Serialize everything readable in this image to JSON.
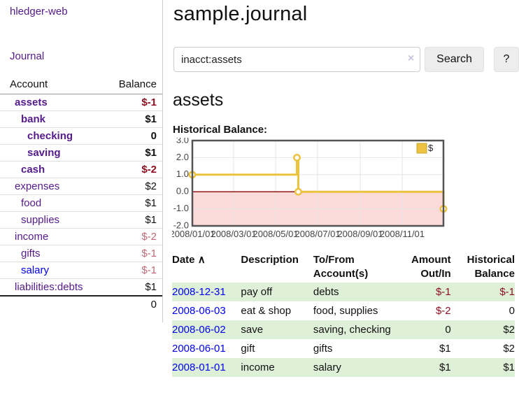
{
  "app": {
    "brand": "hledger-web",
    "nav_journal_label": "Journal"
  },
  "sidebar": {
    "table": {
      "headers": {
        "account": "Account",
        "balance": "Balance"
      },
      "rows": [
        {
          "account": "assets",
          "balance": "$-1",
          "level": 1,
          "bold": true,
          "balance_style": "neg-strong",
          "link_style": "visited"
        },
        {
          "account": "bank",
          "balance": "$1",
          "level": 2,
          "bold": true,
          "balance_style": "pos",
          "link_style": "visited"
        },
        {
          "account": "checking",
          "balance": "0",
          "level": 3,
          "bold": true,
          "balance_style": "pos",
          "link_style": "visited"
        },
        {
          "account": "saving",
          "balance": "$1",
          "level": 3,
          "bold": true,
          "balance_style": "pos",
          "link_style": "visited"
        },
        {
          "account": "cash",
          "balance": "$-2",
          "level": 2,
          "bold": true,
          "balance_style": "neg-strong",
          "link_style": "visited"
        },
        {
          "account": "expenses",
          "balance": "$2",
          "level": 1,
          "bold": false,
          "balance_style": "pos",
          "link_style": "visited"
        },
        {
          "account": "food",
          "balance": "$1",
          "level": 2,
          "bold": false,
          "balance_style": "pos",
          "link_style": "visited"
        },
        {
          "account": "supplies",
          "balance": "$1",
          "level": 2,
          "bold": false,
          "balance_style": "pos",
          "link_style": "visited"
        },
        {
          "account": "income",
          "balance": "$-2",
          "level": 1,
          "bold": false,
          "balance_style": "neg-soft",
          "link_style": "visited"
        },
        {
          "account": "gifts",
          "balance": "$-1",
          "level": 2,
          "bold": false,
          "balance_style": "neg-soft",
          "link_style": "visited"
        },
        {
          "account": "salary",
          "balance": "$-1",
          "level": 2,
          "bold": false,
          "balance_style": "neg-soft",
          "link_style": "unvisited"
        },
        {
          "account": "liabilities:debts",
          "balance": "$1",
          "level": 1,
          "bold": false,
          "balance_style": "pos",
          "link_style": "visited"
        }
      ],
      "total": "0"
    }
  },
  "main": {
    "title": "sample.journal",
    "search": {
      "value": "inacct:assets",
      "clear_icon": "×",
      "button_label": "Search",
      "help_label": "?"
    },
    "account_heading": "assets",
    "chart_label": "Historical Balance:"
  },
  "chart_data": {
    "type": "line",
    "style": "step",
    "title": "Historical Balance:",
    "series": [
      {
        "name": "$",
        "color": "#edc240",
        "points": [
          [
            "2008-01-01",
            1
          ],
          [
            "2008-06-01",
            2
          ],
          [
            "2008-06-03",
            0
          ],
          [
            "2008-12-31",
            -1
          ]
        ]
      }
    ],
    "xlim": [
      "2008-01-01",
      "2008-12-31"
    ],
    "ylim": [
      -2,
      3
    ],
    "yticks": [
      3,
      2,
      1,
      0,
      -1,
      -2
    ],
    "xticks": [
      {
        "date": "2008-01-01",
        "label": "2008/01/01"
      },
      {
        "date": "2008-03-01",
        "label": "2008/03/01"
      },
      {
        "date": "2008-05-01",
        "label": "2008/05/01"
      },
      {
        "date": "2008-07-01",
        "label": "2008/07/01"
      },
      {
        "date": "2008-09-01",
        "label": "2008/09/01"
      },
      {
        "date": "2008-11-01",
        "label": "2008/11/01"
      }
    ],
    "grid": true,
    "legend_position": "top-right",
    "legend": {
      "label": "$",
      "swatch_color": "#edc240",
      "swatch_border": "#c7a62f"
    },
    "negative_region_color": "#fbdada",
    "zero_line_color": "#8b0000",
    "grid_color": "#e4e4e4",
    "border_color": "#545454"
  },
  "register": {
    "headers": {
      "date": "Date",
      "sort_indicator": "∧",
      "description": "Description",
      "accounts": "To/From Account(s)",
      "amount": "Amount Out/In",
      "balance": "Historical Balance"
    },
    "rows": [
      {
        "date": "2008-12-31",
        "description": "pay off",
        "accounts": "debts",
        "amount": "$-1",
        "amount_neg": true,
        "balance": "$-1",
        "balance_neg": true
      },
      {
        "date": "2008-06-03",
        "description": "eat & shop",
        "accounts": "food, supplies",
        "amount": "$-2",
        "amount_neg": true,
        "balance": "0",
        "balance_neg": false
      },
      {
        "date": "2008-06-02",
        "description": "save",
        "accounts": "saving, checking",
        "amount": "0",
        "amount_neg": false,
        "balance": "$2",
        "balance_neg": false
      },
      {
        "date": "2008-06-01",
        "description": "gift",
        "accounts": "gifts",
        "amount": "$1",
        "amount_neg": false,
        "balance": "$2",
        "balance_neg": false
      },
      {
        "date": "2008-01-01",
        "description": "income",
        "accounts": "salary",
        "amount": "$1",
        "amount_neg": false,
        "balance": "$1",
        "balance_neg": false
      }
    ]
  },
  "colors": {
    "link_visited_purple": "#551a8b",
    "link_unvisited_blue": "#0000ee",
    "negative_strong": "#8e1023",
    "negative_soft": "#c06a76",
    "row_stripe_green": "#dff0d8",
    "chart_line_yellow": "#edc240"
  }
}
